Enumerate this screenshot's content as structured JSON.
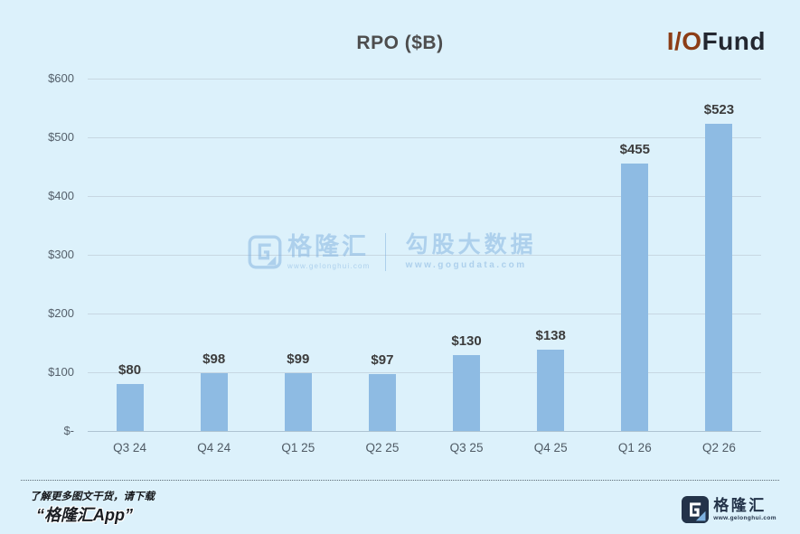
{
  "page": {
    "title": "RPO ($B)"
  },
  "brand_logo": {
    "io": "I/O",
    "fund": "Fund",
    "io_color": "#8C3D16",
    "fund_color": "#232730"
  },
  "chart_data": {
    "type": "bar",
    "title": "RPO ($B)",
    "categories": [
      "Q3 24",
      "Q4 24",
      "Q1 25",
      "Q2 25",
      "Q3 25",
      "Q4 25",
      "Q1 26",
      "Q2 26"
    ],
    "values": [
      80,
      98,
      99,
      97,
      130,
      138,
      455,
      523
    ],
    "value_labels": [
      "$80",
      "$98",
      "$99",
      "$97",
      "$130",
      "$138",
      "$455",
      "$523"
    ],
    "xlabel": "",
    "ylabel": "",
    "ylim": [
      0,
      600
    ],
    "yticks": [
      0,
      100,
      200,
      300,
      400,
      500,
      600
    ],
    "ytick_labels": [
      "$-",
      "$100",
      "$200",
      "$300",
      "$400",
      "$500",
      "$600"
    ],
    "grid": true,
    "legend": false,
    "bar_color": "#8EBBE3",
    "background_color": "#DCF1FB",
    "gridline_color": "#C7D7E2",
    "axis_line_color": "#AFC4D2"
  },
  "watermark": {
    "brand": "格隆汇",
    "brand_url": "www.gelonghui.com",
    "product": "勾股大数据",
    "product_url": "www.gogudata.com",
    "color": "#7FB0DF"
  },
  "footer": {
    "promo_line1": "了解更多图文干货，请下载",
    "promo_line2": "“格隆汇App”",
    "logo_text": "格隆汇",
    "logo_url": "www.gelonghui.com",
    "logo_color": "#233349",
    "logo_accent": "#7EB2E0"
  }
}
